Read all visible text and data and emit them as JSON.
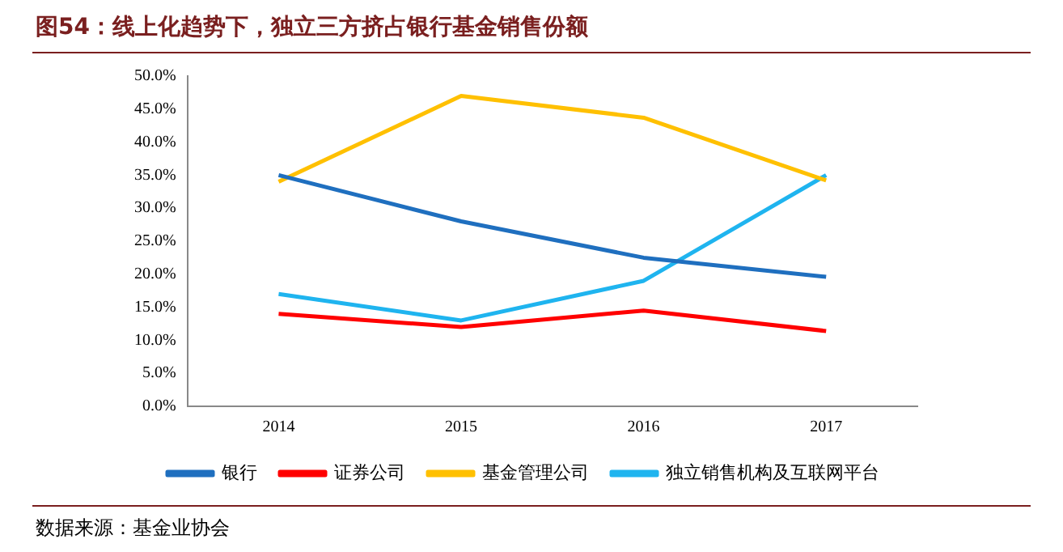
{
  "chart_data": {
    "type": "line",
    "title": "图54：线上化趋势下，独立三方挤占银行基金销售份额",
    "categories": [
      "2014",
      "2015",
      "2016",
      "2017"
    ],
    "series": [
      {
        "name": "银行",
        "color": "#1f6fbf",
        "values": [
          35,
          28,
          22.5,
          19.6
        ]
      },
      {
        "name": "证券公司",
        "color": "#ff0000",
        "values": [
          14,
          12,
          14.5,
          11.4
        ]
      },
      {
        "name": "基金管理公司",
        "color": "#ffc000",
        "values": [
          34,
          47,
          43.7,
          34.2
        ]
      },
      {
        "name": "独立销售机构及互联网平台",
        "color": "#1fb4ef",
        "values": [
          17,
          13,
          19,
          35
        ]
      }
    ],
    "ylim": [
      0,
      50
    ],
    "yticks": [
      {
        "value": 0,
        "label": "0.0%"
      },
      {
        "value": 5,
        "label": "5.0%"
      },
      {
        "value": 10,
        "label": "10.0%"
      },
      {
        "value": 15,
        "label": "15.0%"
      },
      {
        "value": 20,
        "label": "20.0%"
      },
      {
        "value": 25,
        "label": "25.0%"
      },
      {
        "value": 30,
        "label": "30.0%"
      },
      {
        "value": 35,
        "label": "35.0%"
      },
      {
        "value": 40,
        "label": "40.0%"
      },
      {
        "value": 45,
        "label": "45.0%"
      },
      {
        "value": 50,
        "label": "50.0%"
      }
    ],
    "grid": false,
    "legend": "bottom",
    "marker": "none",
    "line_style": "solid",
    "annotations": [
      "数据来源：基金业协会"
    ]
  }
}
